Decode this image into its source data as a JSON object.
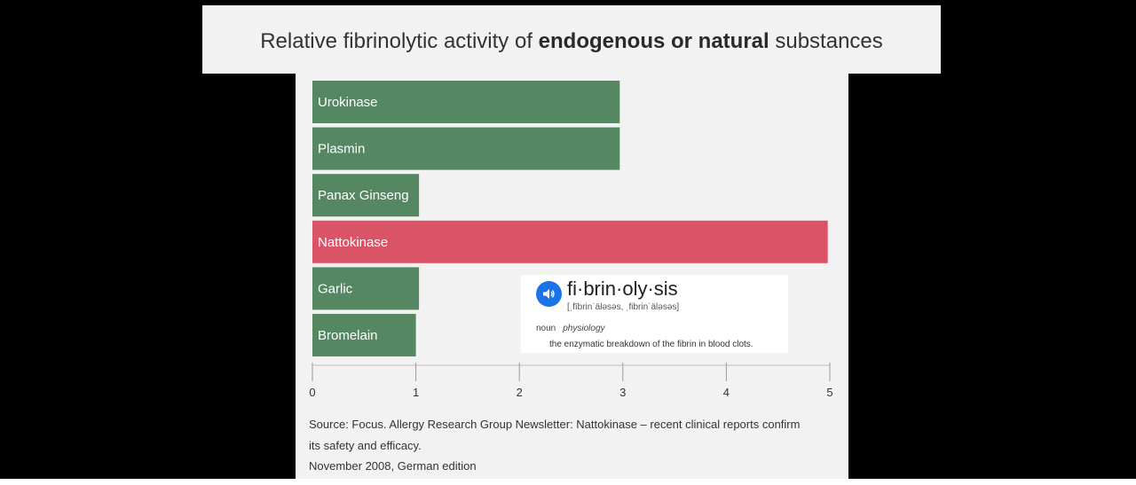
{
  "header": {
    "title_parts": {
      "before": "Relative fibrinolytic activity of ",
      "bold": "endogenous or natural",
      "after": " substances"
    }
  },
  "chart_data": {
    "type": "bar",
    "orientation": "horizontal",
    "title": "Relative fibrinolytic activity of endogenous or natural substances",
    "categories": [
      "Urokinase",
      "Plasmin",
      "Panax Ginseng",
      "Nattokinase",
      "Garlic",
      "Bromelain"
    ],
    "values": [
      2.97,
      2.97,
      1.03,
      4.98,
      1.03,
      1.0
    ],
    "xlim": [
      0,
      5
    ],
    "xticks": [
      "0",
      "1",
      "2",
      "3",
      "4",
      "5"
    ],
    "grid": false,
    "colors": {
      "default": "#558763",
      "highlight": "#d95466",
      "highlight_category": "Nattokinase"
    }
  },
  "source": {
    "line1": "Source: Focus. Allergy Research Group Newsletter: Nattokinase – recent clinical reports confirm",
    "line2": "its safety and efficacy.",
    "line3": "November 2008, German edition"
  },
  "definition_card": {
    "speaker_icon": "speaker-icon",
    "headword": "fi·brin·oly·sis",
    "pronunciation": "[ˌfībrinˈäləsəs, ˌfibrinˈäləsəs]",
    "part_of_speech": "noun",
    "field": "physiology",
    "definition": "the enzymatic breakdown of the fibrin in blood clots."
  }
}
